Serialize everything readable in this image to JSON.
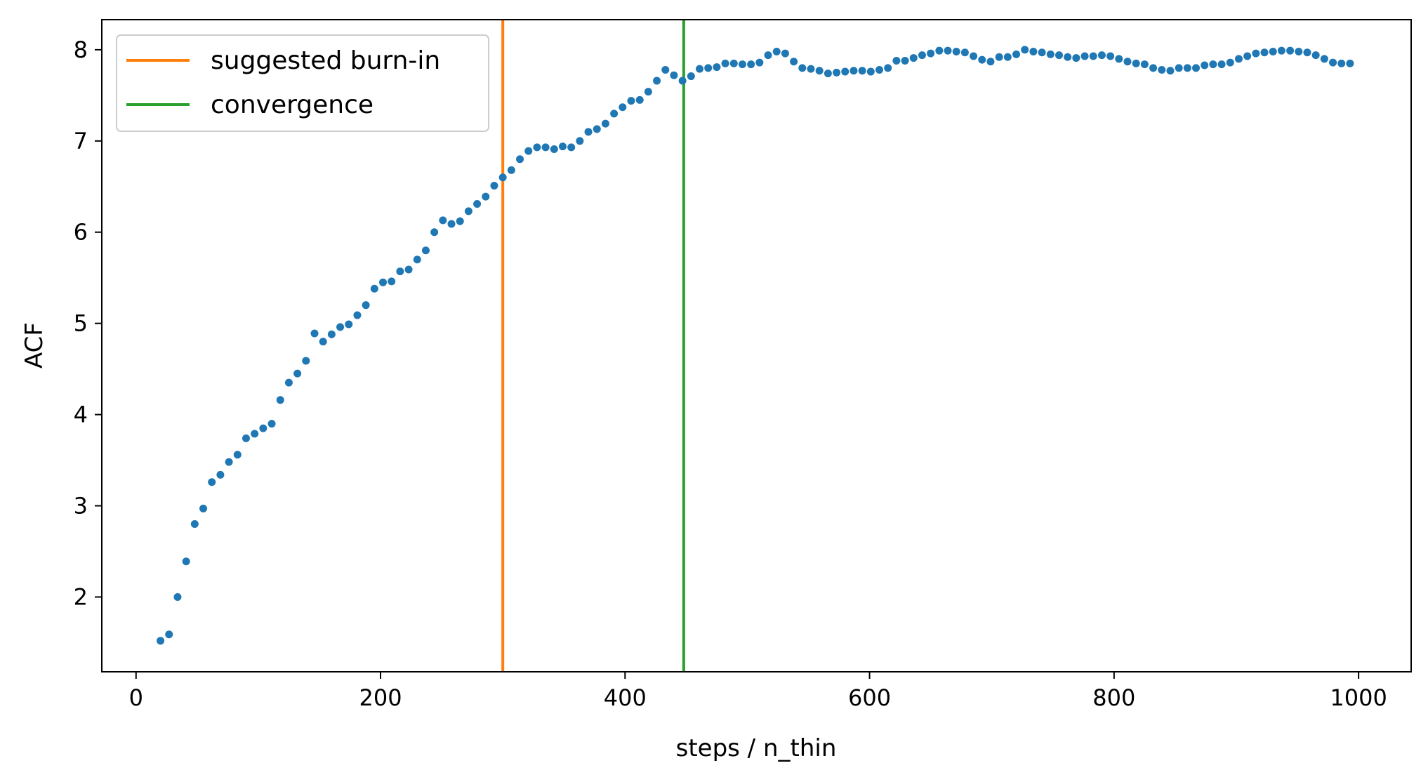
{
  "chart_data": {
    "type": "scatter",
    "title": "",
    "xlabel": "steps / n_thin",
    "ylabel": "ACF",
    "xlim": [
      -28,
      1043
    ],
    "ylim": [
      1.18,
      8.33
    ],
    "xticks": [
      0,
      200,
      400,
      600,
      800,
      1000
    ],
    "yticks": [
      2,
      3,
      4,
      5,
      6,
      7,
      8
    ],
    "grid": false,
    "legend_position": "top-left",
    "series": [
      {
        "color": "#1f77b4",
        "x": [
          20,
          27,
          34,
          41,
          48,
          55,
          62,
          69,
          76,
          83,
          90,
          97,
          104,
          111,
          118,
          125,
          132,
          139,
          146,
          153,
          160,
          167,
          174,
          181,
          188,
          195,
          202,
          209,
          216,
          223,
          230,
          237,
          244,
          251,
          258,
          265,
          272,
          279,
          286,
          293,
          300,
          307,
          314,
          321,
          328,
          335,
          342,
          349,
          356,
          363,
          370,
          377,
          384,
          391,
          398,
          405,
          412,
          419,
          426,
          433,
          440,
          447,
          454,
          461,
          468,
          475,
          482,
          489,
          496,
          503,
          510,
          517,
          524,
          531,
          538,
          545,
          552,
          559,
          566,
          573,
          580,
          587,
          594,
          601,
          608,
          615,
          622,
          629,
          636,
          643,
          650,
          657,
          664,
          671,
          678,
          685,
          692,
          699,
          706,
          713,
          720,
          727,
          734,
          741,
          748,
          755,
          762,
          769,
          776,
          783,
          790,
          797,
          804,
          811,
          818,
          825,
          832,
          839,
          846,
          853,
          860,
          867,
          874,
          881,
          888,
          895,
          902,
          909,
          916,
          923,
          930,
          937,
          944,
          951,
          958,
          965,
          972,
          979,
          986,
          993
        ],
        "y": [
          1.52,
          1.59,
          2.0,
          2.39,
          2.8,
          2.97,
          3.26,
          3.34,
          3.48,
          3.56,
          3.74,
          3.79,
          3.85,
          3.9,
          4.16,
          4.35,
          4.45,
          4.59,
          4.89,
          4.8,
          4.88,
          4.96,
          4.99,
          5.09,
          5.2,
          5.38,
          5.45,
          5.46,
          5.57,
          5.59,
          5.7,
          5.8,
          6.0,
          6.13,
          6.09,
          6.12,
          6.23,
          6.31,
          6.39,
          6.51,
          6.6,
          6.68,
          6.8,
          6.89,
          6.93,
          6.93,
          6.91,
          6.94,
          6.93,
          7.0,
          7.1,
          7.13,
          7.19,
          7.3,
          7.37,
          7.44,
          7.45,
          7.54,
          7.66,
          7.78,
          7.72,
          7.66,
          7.71,
          7.79,
          7.8,
          7.81,
          7.85,
          7.85,
          7.84,
          7.84,
          7.86,
          7.94,
          7.98,
          7.96,
          7.87,
          7.8,
          7.79,
          7.77,
          7.74,
          7.75,
          7.76,
          7.77,
          7.77,
          7.76,
          7.78,
          7.8,
          7.88,
          7.88,
          7.91,
          7.94,
          7.96,
          7.99,
          7.99,
          7.98,
          7.97,
          7.93,
          7.89,
          7.87,
          7.92,
          7.92,
          7.95,
          8.0,
          7.98,
          7.97,
          7.95,
          7.94,
          7.92,
          7.91,
          7.93,
          7.93,
          7.94,
          7.93,
          7.9,
          7.87,
          7.85,
          7.84,
          7.8,
          7.78,
          7.77,
          7.8,
          7.8,
          7.8,
          7.83,
          7.84,
          7.84,
          7.86,
          7.9,
          7.93,
          7.96,
          7.97,
          7.98,
          7.99,
          7.99,
          7.98,
          7.97,
          7.94,
          7.9,
          7.86,
          7.85,
          7.85
        ]
      }
    ],
    "vlines": [
      {
        "name": "suggested burn-in",
        "x": 300,
        "color": "#ff7f0e"
      },
      {
        "name": "convergence",
        "x": 448,
        "color": "#2ca02c"
      }
    ]
  }
}
